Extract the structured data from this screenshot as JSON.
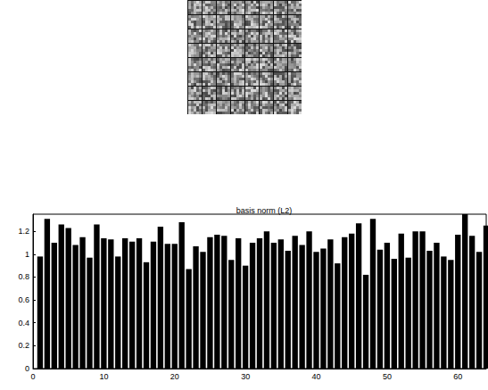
{
  "chart_data": {
    "type": "bar",
    "title": "basis norm (L2)",
    "x": [
      1,
      2,
      3,
      4,
      5,
      6,
      7,
      8,
      9,
      10,
      11,
      12,
      13,
      14,
      15,
      16,
      17,
      18,
      19,
      20,
      21,
      22,
      23,
      24,
      25,
      26,
      27,
      28,
      29,
      30,
      31,
      32,
      33,
      34,
      35,
      36,
      37,
      38,
      39,
      40,
      41,
      42,
      43,
      44,
      45,
      46,
      47,
      48,
      49,
      50,
      51,
      52,
      53,
      54,
      55,
      56,
      57,
      58,
      59,
      60,
      61,
      62,
      63,
      64
    ],
    "values": [
      0.98,
      1.31,
      1.1,
      1.26,
      1.23,
      1.08,
      1.15,
      0.97,
      1.26,
      1.14,
      1.13,
      0.98,
      1.14,
      1.11,
      1.14,
      0.93,
      1.11,
      1.24,
      1.09,
      1.09,
      1.28,
      0.87,
      1.07,
      1.02,
      1.15,
      1.17,
      1.16,
      0.95,
      1.14,
      0.9,
      1.1,
      1.14,
      1.2,
      1.1,
      1.13,
      1.03,
      1.16,
      1.08,
      1.2,
      1.02,
      1.05,
      1.13,
      0.92,
      1.15,
      1.18,
      1.27,
      0.82,
      1.31,
      1.04,
      1.1,
      0.96,
      1.18,
      0.97,
      1.2,
      1.2,
      1.03,
      1.1,
      0.98,
      0.95,
      1.17,
      1.35,
      1.16,
      1.02,
      1.25
    ],
    "color": "#000000",
    "xlim": [
      0,
      64
    ],
    "ylim": [
      0,
      1.35
    ],
    "xticks": [
      0,
      10,
      20,
      30,
      40,
      50,
      60
    ],
    "yticks": [
      0,
      0.2,
      0.4,
      0.6,
      0.8,
      1,
      1.2
    ]
  }
}
